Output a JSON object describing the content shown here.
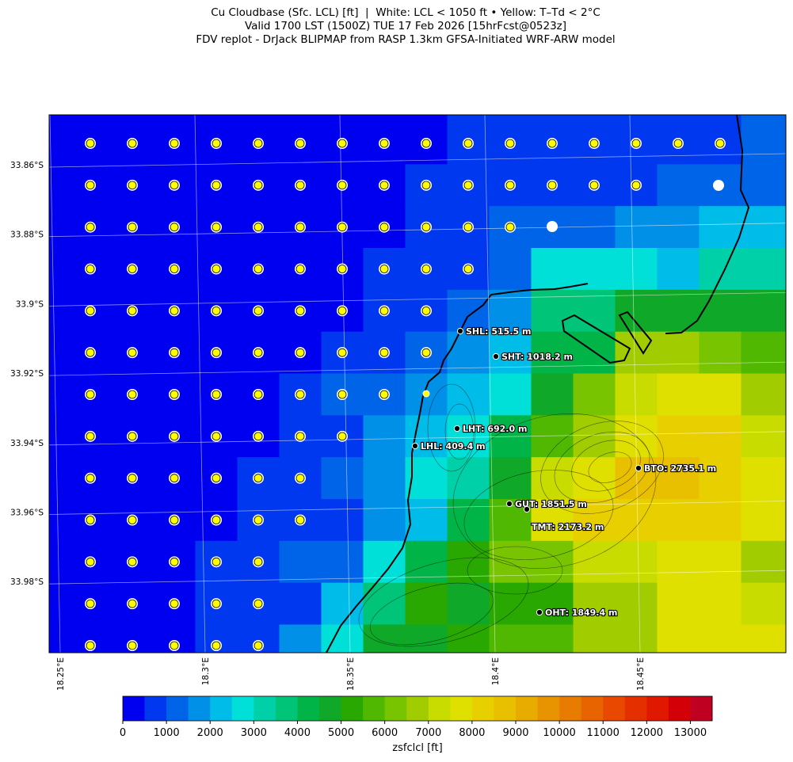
{
  "title": {
    "line1": "Cu Cloudbase (Sfc. LCL) [ft]  |  White: LCL < 1050 ft • Yellow: T–Td < 2°C",
    "line2": "Valid 1700 LST (1500Z) TUE 17 Feb 2026 [15hrFcst@0523z]",
    "line3": "FDV replot - DrJack BLIPMAP from RASP 1.3km GFSA-Initiated WRF-ARW model"
  },
  "lat_labels": [
    "33.86°S",
    "33.88°S",
    "33.9°S",
    "33.92°S",
    "33.94°S",
    "33.96°S",
    "33.98°S"
  ],
  "lon_labels": [
    "18.25°E",
    "18.3°E",
    "18.35°E",
    "18.4°E",
    "18.45°E"
  ],
  "stations": [
    {
      "label": "SHL: 515.5 m"
    },
    {
      "label": "SHT: 1018.2 m"
    },
    {
      "label": "LHT: 692.0 m"
    },
    {
      "label": "LHL: 409.4 m"
    },
    {
      "label": "BTO: 2735.1 m"
    },
    {
      "label": "GUT: 1851.5 m"
    },
    {
      "label": "TMT: 2173.2 m"
    },
    {
      "label": "OHT: 1849.4 m"
    }
  ],
  "colorbar": {
    "label": "zsfclcl [ft]",
    "range": [
      0,
      13500
    ],
    "ticks": [
      0,
      1000,
      2000,
      3000,
      4000,
      5000,
      6000,
      7000,
      8000,
      9000,
      10000,
      11000,
      12000,
      13000
    ],
    "colors": [
      "#0000f0",
      "#0038f0",
      "#0064e8",
      "#0090e8",
      "#00bce8",
      "#00e0d8",
      "#00d0a8",
      "#00c478",
      "#00b448",
      "#10a828",
      "#28a800",
      "#50b800",
      "#78c400",
      "#a0cc00",
      "#c8dc00",
      "#e0e000",
      "#e8d000",
      "#e8c000",
      "#e8ac00",
      "#e89400",
      "#e87c00",
      "#e86400",
      "#e84800",
      "#e43000",
      "#e01800",
      "#d40008",
      "#c00020"
    ]
  }
}
